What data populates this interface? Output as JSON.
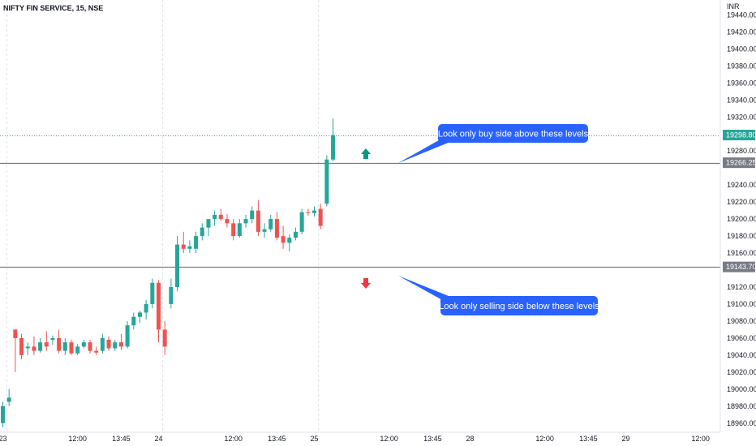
{
  "header": {
    "title": "NIFTY FIN SERVICE, 15, NSE",
    "currency": "INR"
  },
  "colors": {
    "up": "#26a69a",
    "down": "#ef5350",
    "level_line": "#787b86",
    "current_price_line": "#26a69a",
    "callout": "#2962ff",
    "axis_text": "#131722",
    "grid": "#e0e3eb"
  },
  "chart_data": {
    "type": "candlestick",
    "title": "NIFTY FIN SERVICE, 15, NSE",
    "ylabel": "INR",
    "ylim": [
      18955,
      19450
    ],
    "y_ticks": [
      "19440.00",
      "19420.00",
      "19400.00",
      "19380.00",
      "19360.00",
      "19340.00",
      "19320.00",
      "19280.00",
      "19240.00",
      "19220.00",
      "19200.00",
      "19180.00",
      "19160.00",
      "19120.00",
      "19100.00",
      "19080.00",
      "19060.00",
      "19040.00",
      "19020.00",
      "19000.00",
      "18980.00",
      "18960.00"
    ],
    "x_tick_labels": [
      {
        "label": "23",
        "bar": 0
      },
      {
        "label": "12:00",
        "bar": 12
      },
      {
        "label": "13:45",
        "bar": 19
      },
      {
        "label": "24",
        "bar": 25
      },
      {
        "label": "12:00",
        "bar": 37
      },
      {
        "label": "13:45",
        "bar": 44
      },
      {
        "label": "25",
        "bar": 50
      },
      {
        "label": "12:00",
        "bar": 62
      },
      {
        "label": "13:45",
        "bar": 69
      },
      {
        "label": "28",
        "bar": 75
      },
      {
        "label": "12:00",
        "bar": 87
      },
      {
        "label": "13:45",
        "bar": 94
      },
      {
        "label": "29",
        "bar": 100
      },
      {
        "label": "12:00",
        "bar": 112
      }
    ],
    "day_separators": [
      0,
      25,
      50
    ],
    "candles": [
      {
        "o": 18960,
        "h": 18985,
        "l": 18955,
        "c": 18980
      },
      {
        "o": 18985,
        "h": 19000,
        "l": 18980,
        "c": 18990
      },
      {
        "o": 19070,
        "h": 19070,
        "l": 19020,
        "c": 19060
      },
      {
        "o": 19060,
        "h": 19065,
        "l": 19035,
        "c": 19040
      },
      {
        "o": 19048,
        "h": 19055,
        "l": 19040,
        "c": 19050
      },
      {
        "o": 19050,
        "h": 19062,
        "l": 19040,
        "c": 19045
      },
      {
        "o": 19045,
        "h": 19060,
        "l": 19043,
        "c": 19055
      },
      {
        "o": 19055,
        "h": 19068,
        "l": 19045,
        "c": 19050
      },
      {
        "o": 19058,
        "h": 19063,
        "l": 19052,
        "c": 19060
      },
      {
        "o": 19060,
        "h": 19070,
        "l": 19042,
        "c": 19045
      },
      {
        "o": 19045,
        "h": 19060,
        "l": 19040,
        "c": 19055
      },
      {
        "o": 19055,
        "h": 19058,
        "l": 19040,
        "c": 19042
      },
      {
        "o": 19042,
        "h": 19053,
        "l": 19040,
        "c": 19050
      },
      {
        "o": 19050,
        "h": 19058,
        "l": 19048,
        "c": 19055
      },
      {
        "o": 19055,
        "h": 19058,
        "l": 19042,
        "c": 19045
      },
      {
        "o": 19045,
        "h": 19050,
        "l": 19040,
        "c": 19043
      },
      {
        "o": 19045,
        "h": 19065,
        "l": 19042,
        "c": 19060
      },
      {
        "o": 19058,
        "h": 19062,
        "l": 19045,
        "c": 19048
      },
      {
        "o": 19048,
        "h": 19058,
        "l": 19045,
        "c": 19055
      },
      {
        "o": 19055,
        "h": 19065,
        "l": 19046,
        "c": 19050
      },
      {
        "o": 19050,
        "h": 19080,
        "l": 19048,
        "c": 19075
      },
      {
        "o": 19075,
        "h": 19090,
        "l": 19070,
        "c": 19085
      },
      {
        "o": 19085,
        "h": 19092,
        "l": 19078,
        "c": 19090
      },
      {
        "o": 19090,
        "h": 19105,
        "l": 19082,
        "c": 19100
      },
      {
        "o": 19100,
        "h": 19130,
        "l": 19095,
        "c": 19125
      },
      {
        "o": 19125,
        "h": 19128,
        "l": 19055,
        "c": 19070
      },
      {
        "o": 19070,
        "h": 19080,
        "l": 19040,
        "c": 19050
      },
      {
        "o": 19100,
        "h": 19130,
        "l": 19095,
        "c": 19120
      },
      {
        "o": 19120,
        "h": 19180,
        "l": 19115,
        "c": 19170
      },
      {
        "o": 19170,
        "h": 19185,
        "l": 19160,
        "c": 19165
      },
      {
        "o": 19165,
        "h": 19175,
        "l": 19160,
        "c": 19168
      },
      {
        "o": 19165,
        "h": 19185,
        "l": 19160,
        "c": 19180
      },
      {
        "o": 19180,
        "h": 19195,
        "l": 19175,
        "c": 19190
      },
      {
        "o": 19190,
        "h": 19200,
        "l": 19180,
        "c": 19200
      },
      {
        "o": 19200,
        "h": 19210,
        "l": 19192,
        "c": 19205
      },
      {
        "o": 19205,
        "h": 19212,
        "l": 19198,
        "c": 19200
      },
      {
        "o": 19200,
        "h": 19206,
        "l": 19190,
        "c": 19195
      },
      {
        "o": 19195,
        "h": 19200,
        "l": 19175,
        "c": 19180
      },
      {
        "o": 19180,
        "h": 19200,
        "l": 19178,
        "c": 19195
      },
      {
        "o": 19195,
        "h": 19205,
        "l": 19190,
        "c": 19200
      },
      {
        "o": 19200,
        "h": 19215,
        "l": 19195,
        "c": 19210
      },
      {
        "o": 19210,
        "h": 19222,
        "l": 19180,
        "c": 19185
      },
      {
        "o": 19185,
        "h": 19195,
        "l": 19178,
        "c": 19188
      },
      {
        "o": 19188,
        "h": 19205,
        "l": 19185,
        "c": 19200
      },
      {
        "o": 19200,
        "h": 19208,
        "l": 19175,
        "c": 19178
      },
      {
        "o": 19180,
        "h": 19192,
        "l": 19165,
        "c": 19172
      },
      {
        "o": 19172,
        "h": 19182,
        "l": 19162,
        "c": 19178
      },
      {
        "o": 19178,
        "h": 19190,
        "l": 19175,
        "c": 19185
      },
      {
        "o": 19185,
        "h": 19212,
        "l": 19182,
        "c": 19208
      },
      {
        "o": 19208,
        "h": 19212,
        "l": 19204,
        "c": 19207
      },
      {
        "o": 19207,
        "h": 19215,
        "l": 19203,
        "c": 19210
      },
      {
        "o": 19212,
        "h": 19218,
        "l": 19188,
        "c": 19192
      },
      {
        "o": 19218,
        "h": 19275,
        "l": 19215,
        "c": 19270
      },
      {
        "o": 19270,
        "h": 19318,
        "l": 19268,
        "c": 19298.8
      }
    ],
    "levels": [
      {
        "price": 19266.25,
        "label": "19266.25"
      },
      {
        "price": 19143.7,
        "label": "19143.70"
      }
    ],
    "current_price": {
      "price": 19298.8,
      "label": "19298.80"
    },
    "annotations": [
      {
        "text": "Look only buy side above these levels",
        "arrow": "up"
      },
      {
        "text": "Look only selling side below these levels",
        "arrow": "down"
      }
    ]
  }
}
